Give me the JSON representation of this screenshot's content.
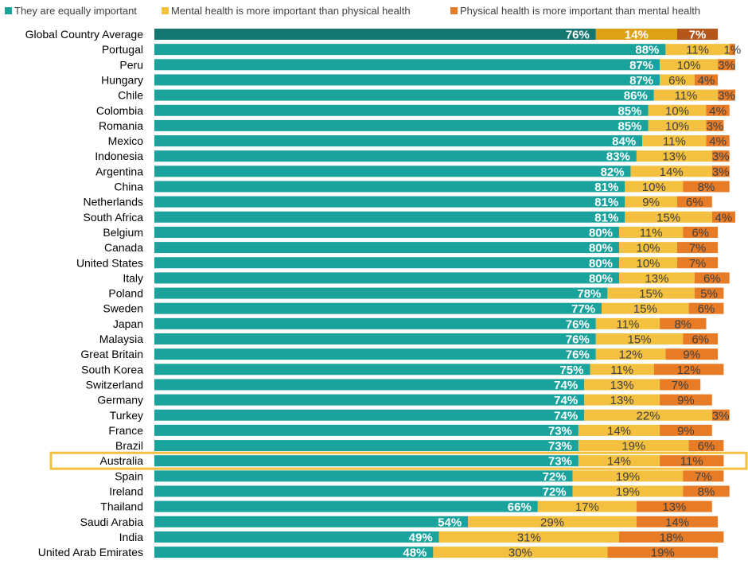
{
  "chart_data": {
    "type": "bar",
    "orientation": "horizontal",
    "stacked": true,
    "legend_position": "top",
    "highlighted_category": "Australia",
    "categories": [
      "Global Country Average",
      "Portugal",
      "Peru",
      "Hungary",
      "Chile",
      "Colombia",
      "Romania",
      "Mexico",
      "Indonesia",
      "Argentina",
      "China",
      "Netherlands",
      "South Africa",
      "Belgium",
      "Canada",
      "United States",
      "Italy",
      "Poland",
      "Sweden",
      "Japan",
      "Malaysia",
      "Great Britain",
      "South Korea",
      "Switzerland",
      "Germany",
      "Turkey",
      "France",
      "Brazil",
      "Australia",
      "Spain",
      "Ireland",
      "Thailand",
      "Saudi Arabia",
      "India",
      "United Arab Emirates"
    ],
    "series": [
      {
        "name": "They are equally important",
        "color": "#1AA39C",
        "highlight_color": "#14776F",
        "values": [
          76,
          88,
          87,
          87,
          86,
          85,
          85,
          84,
          83,
          82,
          81,
          81,
          81,
          80,
          80,
          80,
          80,
          78,
          77,
          76,
          76,
          76,
          75,
          74,
          74,
          74,
          73,
          73,
          73,
          72,
          72,
          66,
          54,
          49,
          48
        ],
        "labels": [
          "76%",
          "88%",
          "87%",
          "87%",
          "86%",
          "85%",
          "85%",
          "84%",
          "83%",
          "82%",
          "81%",
          "81%",
          "81%",
          "80%",
          "80%",
          "80%",
          "80%",
          "78%",
          "77%",
          "76%",
          "76%",
          "76%",
          "75%",
          "74%",
          "74%",
          "74%",
          "73%",
          "73%",
          "73%",
          "72%",
          "72%",
          "66%",
          "54%",
          "49%",
          "48%"
        ]
      },
      {
        "name": "Mental health is more important than physical health",
        "color": "#F3C040",
        "highlight_color": "#DCA116",
        "values": [
          14,
          11,
          10,
          6,
          11,
          10,
          10,
          11,
          13,
          14,
          10,
          9,
          15,
          11,
          10,
          10,
          13,
          15,
          15,
          11,
          15,
          12,
          11,
          13,
          13,
          22,
          14,
          19,
          14,
          19,
          19,
          17,
          29,
          31,
          30
        ],
        "labels": [
          "14%",
          "11%",
          "10%",
          "6%",
          "11%",
          "10%",
          "10%",
          "11%",
          "13%",
          "14%",
          "10%",
          "9%",
          "15%",
          "11%",
          "10%",
          "10%",
          "13%",
          "15%",
          "15%",
          "11%",
          "15%",
          "12%",
          "11%",
          "13%",
          "13%",
          "22%",
          "14%",
          "19%",
          "14%",
          "19%",
          "19%",
          "17%",
          "29%",
          "31%",
          "30%"
        ]
      },
      {
        "name": "Physical health is more important than mental health",
        "color": "#E87B25",
        "highlight_color": "#B5561A",
        "values": [
          7,
          1,
          3,
          4,
          3,
          4,
          3,
          4,
          3,
          3,
          8,
          6,
          4,
          6,
          7,
          7,
          6,
          5,
          6,
          8,
          6,
          9,
          12,
          7,
          9,
          3,
          9,
          6,
          11,
          7,
          8,
          13,
          14,
          18,
          19
        ],
        "labels": [
          "7%",
          "1%",
          "3%",
          "4%",
          "3%",
          "4%",
          "3%",
          "4%",
          "3%",
          "3%",
          "8%",
          "6%",
          "4%",
          "6%",
          "7%",
          "7%",
          "6%",
          "5%",
          "6%",
          "8%",
          "6%",
          "9%",
          "12%",
          "7%",
          "9%",
          "3%",
          "9%",
          "6%",
          "11%",
          "7%",
          "8%",
          "13%",
          "14%",
          "18%",
          "19%"
        ]
      }
    ],
    "highlight_box_color": "#F3C040",
    "xlim": [
      0,
      100
    ]
  }
}
